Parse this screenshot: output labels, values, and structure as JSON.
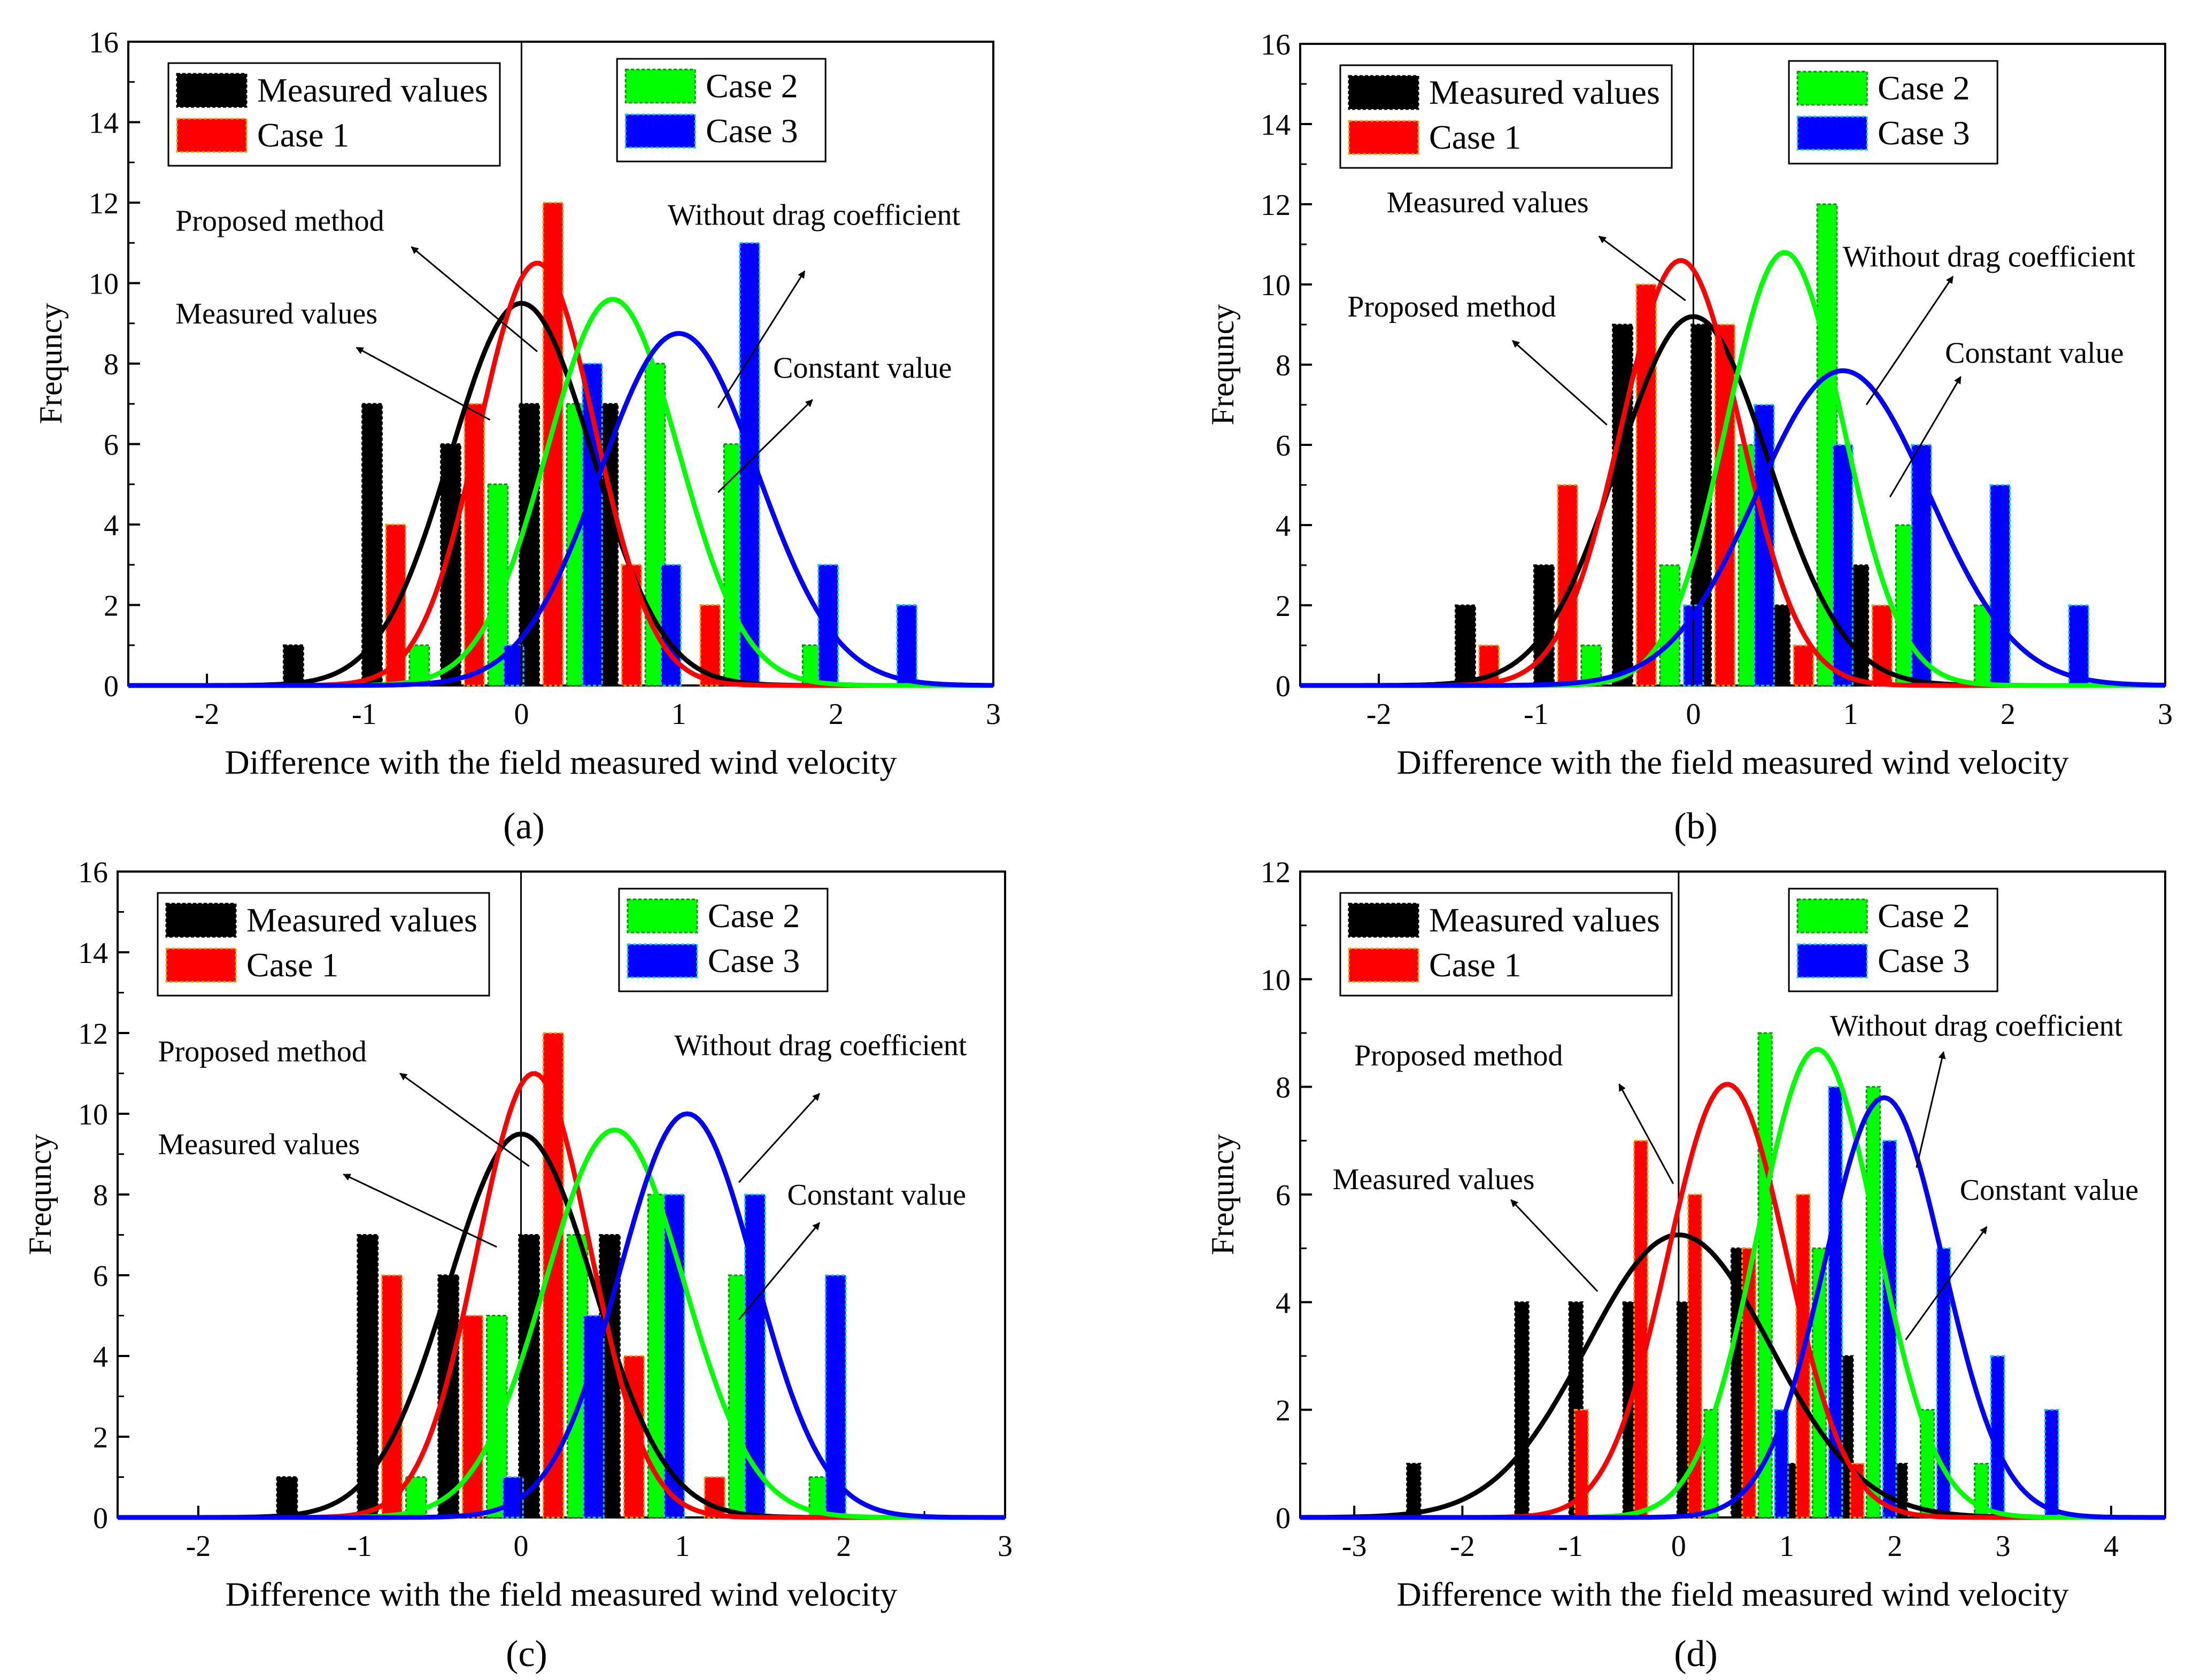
{
  "colors": {
    "measured": "#000000",
    "case1": "#ff0000",
    "case2": "#00ff00",
    "case3": "#0000ff",
    "case1_bar_edge": "#ff9900",
    "case2_bar_edge": "#009900",
    "case3_bar_edge": "#00ccff"
  },
  "chart_data": [
    {
      "id": "a",
      "type": "bar",
      "caption": "(a)",
      "xlabel": "Difference with the field measured wind velocity",
      "ylabel": "Frequncy",
      "xlim": [
        -2.5,
        3
      ],
      "ylim": [
        0,
        16
      ],
      "xticks": [
        -2,
        -1,
        0,
        1,
        2,
        3
      ],
      "yticks": [
        0,
        2,
        4,
        6,
        8,
        10,
        12,
        14,
        16
      ],
      "vline_x": 0,
      "legend_left": [
        "Measured values",
        "Case 1"
      ],
      "legend_right": [
        "Case 2",
        "Case 3"
      ],
      "series": [
        {
          "name": "Measured values",
          "x": [
            -1.45,
            -0.95,
            -0.45,
            0.05,
            0.55
          ],
          "values": [
            1,
            7,
            6,
            7,
            7
          ]
        },
        {
          "name": "Case 1",
          "x": [
            -0.8,
            -0.3,
            0.2,
            0.7,
            1.2
          ],
          "values": [
            4,
            7,
            12,
            3,
            2
          ]
        },
        {
          "name": "Case 2",
          "x": [
            -0.65,
            -0.15,
            0.35,
            0.85,
            1.35,
            1.85
          ],
          "values": [
            1,
            5,
            7,
            8,
            6,
            1
          ]
        },
        {
          "name": "Case 3",
          "x": [
            -0.05,
            0.45,
            0.95,
            1.45,
            1.95,
            2.45
          ],
          "values": [
            1,
            8,
            3,
            11,
            3,
            2
          ]
        }
      ],
      "curves": [
        {
          "series": "Measured values",
          "mean": 0.0,
          "sd": 0.45,
          "peak": 9.5
        },
        {
          "series": "Case 1",
          "mean": 0.1,
          "sd": 0.37,
          "peak": 10.5
        },
        {
          "series": "Case 2",
          "mean": 0.58,
          "sd": 0.42,
          "peak": 9.6
        },
        {
          "series": "Case 3",
          "mean": 1.0,
          "sd": 0.5,
          "peak": 8.75
        }
      ],
      "annotations": [
        {
          "text": "Proposed method",
          "tx": -2.2,
          "ty": 11.3,
          "ax": -0.7,
          "ay": 10.9,
          "hx": 0.1,
          "hy": 8.3
        },
        {
          "text": "Measured values",
          "tx": -2.2,
          "ty": 9.0,
          "ax": -1.05,
          "ay": 8.4,
          "hx": -0.2,
          "hy": 6.6
        },
        {
          "text": "Without drag coefficient",
          "tx": 0.93,
          "ty": 11.45,
          "ax": 1.8,
          "ay": 10.3,
          "hx": 1.25,
          "hy": 6.9
        },
        {
          "text": "Constant value",
          "tx": 1.6,
          "ty": 7.65,
          "ax": 1.85,
          "ay": 7.1,
          "hx": 1.25,
          "hy": 4.8
        }
      ]
    },
    {
      "id": "b",
      "type": "bar",
      "caption": "(b)",
      "xlabel": "Difference with the field measured wind velocity",
      "ylabel": "Frequncy",
      "xlim": [
        -2.5,
        3
      ],
      "ylim": [
        0,
        16
      ],
      "xticks": [
        -2,
        -1,
        0,
        1,
        2,
        3
      ],
      "yticks": [
        0,
        2,
        4,
        6,
        8,
        10,
        12,
        14,
        16
      ],
      "vline_x": 0,
      "legend_left": [
        "Measured values",
        "Case 1"
      ],
      "legend_right": [
        "Case 2",
        "Case 3"
      ],
      "series": [
        {
          "name": "Measured values",
          "x": [
            -1.45,
            -0.95,
            -0.45,
            0.05,
            0.55,
            1.05
          ],
          "values": [
            2,
            3,
            9,
            9,
            2,
            3
          ]
        },
        {
          "name": "Case 1",
          "x": [
            -1.3,
            -0.8,
            -0.3,
            0.2,
            0.7,
            1.2
          ],
          "values": [
            1,
            5,
            10,
            9,
            1,
            2
          ]
        },
        {
          "name": "Case 2",
          "x": [
            -0.65,
            -0.15,
            0.35,
            0.85,
            1.35,
            1.85
          ],
          "values": [
            1,
            3,
            6,
            12,
            4,
            2
          ]
        },
        {
          "name": "Case 3",
          "x": [
            0.0,
            0.45,
            0.95,
            1.45,
            1.95,
            2.45
          ],
          "values": [
            2,
            7,
            6,
            6,
            5,
            2
          ]
        }
      ],
      "curves": [
        {
          "series": "Measured values",
          "mean": 0.0,
          "sd": 0.48,
          "peak": 9.2
        },
        {
          "series": "Case 1",
          "mean": -0.08,
          "sd": 0.38,
          "peak": 10.6
        },
        {
          "series": "Case 2",
          "mean": 0.58,
          "sd": 0.37,
          "peak": 10.8
        },
        {
          "series": "Case 3",
          "mean": 0.95,
          "sd": 0.55,
          "peak": 7.85
        }
      ],
      "annotations": [
        {
          "text": "Measured values",
          "tx": -1.95,
          "ty": 11.8,
          "ax": -0.6,
          "ay": 11.2,
          "hx": -0.05,
          "hy": 9.6
        },
        {
          "text": "Proposed method",
          "tx": -2.2,
          "ty": 9.2,
          "ax": -1.15,
          "ay": 8.6,
          "hx": -0.55,
          "hy": 6.5
        },
        {
          "text": "Without drag coefficient",
          "tx": 0.95,
          "ty": 10.45,
          "ax": 1.65,
          "ay": 10.2,
          "hx": 1.1,
          "hy": 7.0
        },
        {
          "text": "Constant value",
          "tx": 1.6,
          "ty": 8.05,
          "ax": 1.7,
          "ay": 7.7,
          "hx": 1.25,
          "hy": 4.7
        }
      ]
    },
    {
      "id": "c",
      "type": "bar",
      "caption": "(c)",
      "xlabel": "Difference with the field measured wind velocity",
      "ylabel": "Frequncy",
      "xlim": [
        -2.5,
        3
      ],
      "ylim": [
        0,
        16
      ],
      "xticks": [
        -2,
        -1,
        0,
        1,
        2,
        3
      ],
      "yticks": [
        0,
        2,
        4,
        6,
        8,
        10,
        12,
        14,
        16
      ],
      "vline_x": 0,
      "legend_left": [
        "Measured values",
        "Case 1"
      ],
      "legend_right": [
        "Case 2",
        "Case 3"
      ],
      "series": [
        {
          "name": "Measured values",
          "x": [
            -1.45,
            -0.95,
            -0.45,
            0.05,
            0.55
          ],
          "values": [
            1,
            7,
            6,
            7,
            7
          ]
        },
        {
          "name": "Case 1",
          "x": [
            -0.8,
            -0.3,
            0.2,
            0.7,
            1.2
          ],
          "values": [
            6,
            5,
            12,
            4,
            1
          ]
        },
        {
          "name": "Case 2",
          "x": [
            -0.65,
            -0.15,
            0.35,
            0.85,
            1.35,
            1.85
          ],
          "values": [
            1,
            5,
            7,
            8,
            6,
            1
          ]
        },
        {
          "name": "Case 3",
          "x": [
            -0.05,
            0.45,
            0.95,
            1.45,
            1.95
          ],
          "values": [
            1,
            5,
            8,
            8,
            6
          ]
        }
      ],
      "curves": [
        {
          "series": "Measured values",
          "mean": 0.0,
          "sd": 0.45,
          "peak": 9.5
        },
        {
          "series": "Case 1",
          "mean": 0.08,
          "sd": 0.35,
          "peak": 11.0
        },
        {
          "series": "Case 2",
          "mean": 0.58,
          "sd": 0.43,
          "peak": 9.6
        },
        {
          "series": "Case 3",
          "mean": 1.03,
          "sd": 0.42,
          "peak": 10.0
        }
      ],
      "annotations": [
        {
          "text": "Proposed method",
          "tx": -2.25,
          "ty": 11.3,
          "ax": -0.75,
          "ay": 11.0,
          "hx": 0.05,
          "hy": 8.7
        },
        {
          "text": "Measured values",
          "tx": -2.25,
          "ty": 9.0,
          "ax": -1.1,
          "ay": 8.5,
          "hx": -0.15,
          "hy": 6.7
        },
        {
          "text": "Without drag coefficient",
          "tx": 0.95,
          "ty": 11.45,
          "ax": 1.85,
          "ay": 10.5,
          "hx": 1.35,
          "hy": 8.3
        },
        {
          "text": "Constant value",
          "tx": 1.65,
          "ty": 7.75,
          "ax": 1.85,
          "ay": 7.3,
          "hx": 1.35,
          "hy": 4.9
        }
      ]
    },
    {
      "id": "d",
      "type": "bar",
      "caption": "(d)",
      "xlabel": "Difference with the field measured wind velocity",
      "ylabel": "Frequncy",
      "xlim": [
        -3.5,
        4.5
      ],
      "ylim": [
        0,
        12
      ],
      "xticks": [
        -3,
        -2,
        -1,
        0,
        1,
        2,
        3,
        4
      ],
      "yticks": [
        0,
        2,
        4,
        6,
        8,
        10,
        12
      ],
      "vline_x": 0,
      "legend_left": [
        "Measured values",
        "Case 1"
      ],
      "legend_right": [
        "Case 2",
        "Case 3"
      ],
      "series": [
        {
          "name": "Measured values",
          "x": [
            -2.45,
            -1.45,
            -0.95,
            -0.45,
            0.05,
            0.55,
            1.05,
            1.55,
            2.05
          ],
          "values": [
            1,
            4,
            4,
            4,
            4,
            5,
            1,
            3,
            1
          ]
        },
        {
          "name": "Case 1",
          "x": [
            -0.9,
            -0.35,
            0.15,
            0.65,
            1.15,
            1.65
          ],
          "values": [
            2,
            7,
            6,
            5,
            6,
            1
          ]
        },
        {
          "name": "Case 2",
          "x": [
            0.3,
            0.8,
            1.3,
            1.8,
            2.3,
            2.8
          ],
          "values": [
            2,
            9,
            5,
            8,
            2,
            1
          ]
        },
        {
          "name": "Case 3",
          "x": [
            0.95,
            1.45,
            1.95,
            2.45,
            2.95,
            3.45
          ],
          "values": [
            2,
            8,
            7,
            5,
            3,
            2
          ]
        }
      ],
      "curves": [
        {
          "series": "Measured values",
          "mean": 0.0,
          "sd": 0.85,
          "peak": 5.25
        },
        {
          "series": "Case 1",
          "mean": 0.45,
          "sd": 0.55,
          "peak": 8.05
        },
        {
          "series": "Case 2",
          "mean": 1.28,
          "sd": 0.55,
          "peak": 8.7
        },
        {
          "series": "Case 3",
          "mean": 1.9,
          "sd": 0.55,
          "peak": 7.8
        }
      ],
      "annotations": [
        {
          "text": "Proposed method",
          "tx": -3.0,
          "ty": 8.4,
          "ax": -0.55,
          "ay": 8.05,
          "hx": -0.05,
          "hy": 6.2
        },
        {
          "text": "Measured values",
          "tx": -3.2,
          "ty": 6.1,
          "ax": -1.55,
          "ay": 5.9,
          "hx": -0.75,
          "hy": 4.2
        },
        {
          "text": "Without drag coefficient",
          "tx": 1.4,
          "ty": 8.95,
          "ax": 2.45,
          "ay": 8.65,
          "hx": 2.2,
          "hy": 6.5
        },
        {
          "text": "Constant value",
          "tx": 2.6,
          "ty": 5.9,
          "ax": 2.85,
          "ay": 5.4,
          "hx": 2.1,
          "hy": 3.3
        }
      ]
    }
  ]
}
